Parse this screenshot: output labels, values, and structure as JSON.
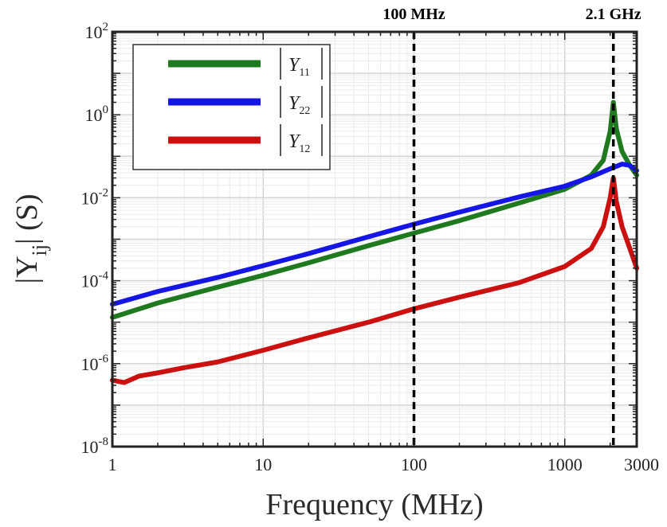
{
  "chart_data": {
    "type": "line",
    "title": "",
    "xlabel": "Frequency (MHz)",
    "ylabel_main": "|Y",
    "ylabel_sub": "ij",
    "ylabel_tail": "| (S)",
    "xscale": "log",
    "yscale": "log",
    "xlim": [
      1,
      3000
    ],
    "ylim": [
      1e-08,
      100
    ],
    "grid": true,
    "legend_position": "top-left",
    "x_ticks": [
      {
        "value": 1,
        "label": "1"
      },
      {
        "value": 10,
        "label": "10"
      },
      {
        "value": 100,
        "label": "100"
      },
      {
        "value": 1000,
        "label": "1000"
      },
      {
        "value": 3000,
        "label": "3000"
      }
    ],
    "y_ticks": [
      {
        "value": 1e-08,
        "base": "10",
        "exp": "-8"
      },
      {
        "value": 1e-06,
        "base": "10",
        "exp": "-6"
      },
      {
        "value": 0.0001,
        "base": "10",
        "exp": "-4"
      },
      {
        "value": 0.01,
        "base": "10",
        "exp": "-2"
      },
      {
        "value": 1,
        "base": "10",
        "exp": "0"
      },
      {
        "value": 100,
        "base": "10",
        "exp": "2"
      }
    ],
    "annotations": [
      {
        "x": 100,
        "label": "100 MHz",
        "style": "dashed-vertical"
      },
      {
        "x": 2100,
        "label": "2.1 GHz",
        "style": "dashed-vertical"
      }
    ],
    "series": [
      {
        "name": "|Y11|",
        "name_main": "Y",
        "name_sub": "11",
        "color": "#1f7a1f",
        "x": [
          1,
          2,
          5,
          10,
          20,
          50,
          100,
          200,
          500,
          1000,
          1500,
          1800,
          2000,
          2100,
          2200,
          2400,
          2700,
          3000
        ],
        "y": [
          1.3e-05,
          2.9e-05,
          7e-05,
          0.000135,
          0.00027,
          0.0007,
          0.0014,
          0.0028,
          0.0075,
          0.016,
          0.035,
          0.08,
          0.4,
          2.0,
          0.45,
          0.13,
          0.06,
          0.035
        ]
      },
      {
        "name": "|Y22|",
        "name_main": "Y",
        "name_sub": "22",
        "color": "#1515e6",
        "x": [
          1,
          2,
          5,
          10,
          20,
          50,
          100,
          200,
          500,
          1000,
          1500,
          2000,
          2400,
          2700,
          3000
        ],
        "y": [
          2.7e-05,
          5.5e-05,
          0.00012,
          0.00023,
          0.00045,
          0.00115,
          0.0023,
          0.0045,
          0.0105,
          0.019,
          0.032,
          0.05,
          0.065,
          0.06,
          0.045
        ]
      },
      {
        "name": "|Y12|",
        "name_main": "Y",
        "name_sub": "12",
        "color": "#cc1010",
        "x": [
          1,
          1.2,
          1.5,
          2,
          3,
          5,
          10,
          20,
          50,
          100,
          200,
          500,
          1000,
          1500,
          1800,
          2000,
          2100,
          2200,
          2400,
          2700,
          3000
        ],
        "y": [
          4e-07,
          3.5e-07,
          5e-07,
          6e-07,
          8e-07,
          1.1e-06,
          2.1e-06,
          4.2e-06,
          1e-05,
          2.1e-05,
          4e-05,
          9e-05,
          0.00022,
          0.0006,
          0.002,
          0.01,
          0.03,
          0.008,
          0.002,
          0.0006,
          0.0002
        ]
      }
    ]
  }
}
